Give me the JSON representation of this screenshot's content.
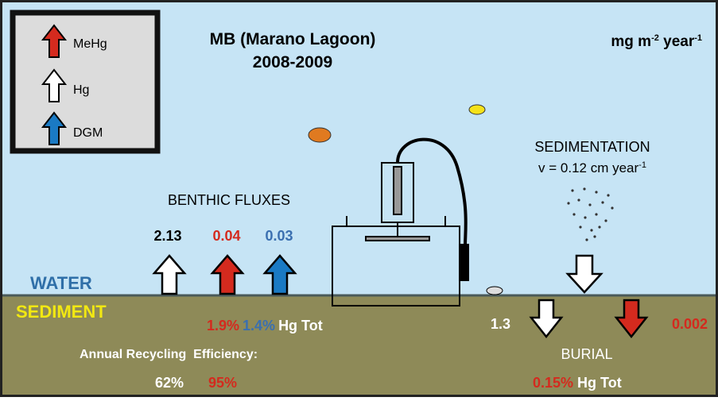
{
  "legend": {
    "items": [
      "MeHg",
      "Hg",
      "DGM"
    ]
  },
  "title": {
    "line1": "MB (Marano Lagoon)",
    "line2": "2008-2009"
  },
  "units": {
    "base": "mg m",
    "exp1": "-2",
    "mid": " year",
    "exp2": "-1"
  },
  "benthic": {
    "label": "BENTHIC FLUXES",
    "hg": "2.13",
    "mehg": "0.04",
    "dgm": "0.03"
  },
  "layers": {
    "water": "WATER",
    "sediment": "SEDIMENT"
  },
  "hgtot": {
    "mehg_pct": "1.9%",
    "dgm_pct": "1.4%",
    "label": "Hg Tot"
  },
  "recycling": {
    "label": "Annual Recycling  Efficiency:",
    "hg": "62%",
    "mehg": "95%"
  },
  "sedimentation": {
    "label": "SEDIMENTATION",
    "rate": "v = 0.12 cm year",
    "exp": "-1"
  },
  "burial": {
    "label": "BURIAL",
    "hg": "1.3",
    "mehg": "0.002",
    "pct": "0.15%",
    "pct_label": "Hg Tot"
  }
}
